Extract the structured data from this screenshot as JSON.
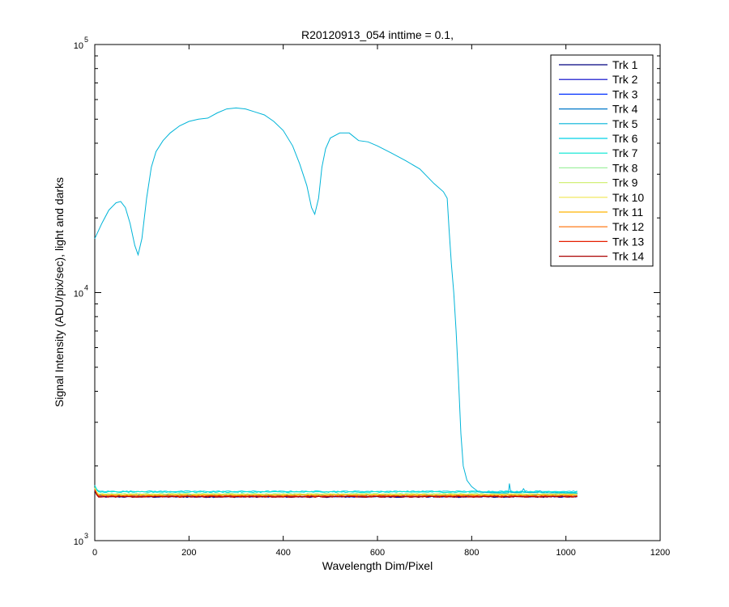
{
  "chart_data": {
    "type": "line",
    "title": "R20120913_054 inttime = 0.1,",
    "xlabel": "Wavelength Dim/Pixel",
    "ylabel": "Signal Intensity (ADU/pix/sec), light and darks",
    "xlim": [
      0,
      1200
    ],
    "ylim": [
      1000,
      100000
    ],
    "yscale": "log",
    "grid": false,
    "legend_position": "top-right",
    "x_ticks": [
      "0",
      "200",
      "400",
      "600",
      "800",
      "1000",
      "1200"
    ],
    "y_ticks": [
      {
        "base": "10",
        "exp": "3"
      },
      {
        "base": "10",
        "exp": "4"
      },
      {
        "base": "10",
        "exp": "5"
      }
    ],
    "series": [
      {
        "name": "Trk 1",
        "color": "#00007f",
        "shape": "flat",
        "level": 1500
      },
      {
        "name": "Trk 2",
        "color": "#0000c8",
        "shape": "flat",
        "level": 1505
      },
      {
        "name": "Trk 3",
        "color": "#0030ff",
        "shape": "flat",
        "level": 1510
      },
      {
        "name": "Trk 4",
        "color": "#0078c8",
        "shape": "flat",
        "level": 1530
      },
      {
        "name": "Trk 5",
        "color": "#00b4d8",
        "shape": "spectrum",
        "points": [
          [
            0,
            16500
          ],
          [
            15,
            19000
          ],
          [
            30,
            21500
          ],
          [
            45,
            23000
          ],
          [
            55,
            23300
          ],
          [
            65,
            22000
          ],
          [
            75,
            19000
          ],
          [
            85,
            15500
          ],
          [
            92,
            14200
          ],
          [
            100,
            16500
          ],
          [
            110,
            24000
          ],
          [
            120,
            32000
          ],
          [
            130,
            37000
          ],
          [
            145,
            41000
          ],
          [
            160,
            44000
          ],
          [
            180,
            47000
          ],
          [
            200,
            49000
          ],
          [
            220,
            50000
          ],
          [
            240,
            50500
          ],
          [
            260,
            53000
          ],
          [
            280,
            55000
          ],
          [
            300,
            55500
          ],
          [
            320,
            55000
          ],
          [
            340,
            53500
          ],
          [
            360,
            52000
          ],
          [
            380,
            49000
          ],
          [
            400,
            45000
          ],
          [
            420,
            39000
          ],
          [
            435,
            33000
          ],
          [
            450,
            27000
          ],
          [
            460,
            22000
          ],
          [
            467,
            20700
          ],
          [
            475,
            24000
          ],
          [
            482,
            32000
          ],
          [
            490,
            38000
          ],
          [
            500,
            42000
          ],
          [
            520,
            44000
          ],
          [
            540,
            44000
          ],
          [
            560,
            41000
          ],
          [
            580,
            40500
          ],
          [
            600,
            39000
          ],
          [
            630,
            36500
          ],
          [
            660,
            34000
          ],
          [
            690,
            31500
          ],
          [
            720,
            27500
          ],
          [
            740,
            25500
          ],
          [
            748,
            24000
          ],
          [
            752,
            18000
          ],
          [
            757,
            13000
          ],
          [
            762,
            10000
          ],
          [
            767,
            7000
          ],
          [
            772,
            4500
          ],
          [
            777,
            2700
          ],
          [
            782,
            2000
          ],
          [
            790,
            1750
          ],
          [
            800,
            1650
          ],
          [
            815,
            1570
          ],
          [
            840,
            1560
          ],
          [
            870,
            1555
          ],
          [
            878,
            1560
          ],
          [
            880,
            1700
          ],
          [
            883,
            1565
          ],
          [
            905,
            1560
          ],
          [
            910,
            1620
          ],
          [
            915,
            1565
          ],
          [
            940,
            1560
          ],
          [
            945,
            1590
          ],
          [
            950,
            1560
          ],
          [
            1025,
            1555
          ]
        ]
      },
      {
        "name": "Trk 6",
        "color": "#00d2e6",
        "shape": "flat",
        "level": 1580
      },
      {
        "name": "Trk 7",
        "color": "#00e6d2",
        "shape": "flat",
        "level": 1570
      },
      {
        "name": "Trk 8",
        "color": "#a0f0a0",
        "shape": "flat",
        "level": 1545
      },
      {
        "name": "Trk 9",
        "color": "#d2f078",
        "shape": "flat",
        "level": 1540
      },
      {
        "name": "Trk 10",
        "color": "#f0e650",
        "shape": "flat",
        "level": 1535
      },
      {
        "name": "Trk 11",
        "color": "#ffb400",
        "shape": "flat",
        "level": 1525
      },
      {
        "name": "Trk 12",
        "color": "#ff6e00",
        "shape": "flat",
        "level": 1515
      },
      {
        "name": "Trk 13",
        "color": "#e61e00",
        "shape": "flat",
        "level": 1508
      },
      {
        "name": "Trk 14",
        "color": "#aa0000",
        "shape": "flat",
        "level": 1502
      }
    ]
  }
}
